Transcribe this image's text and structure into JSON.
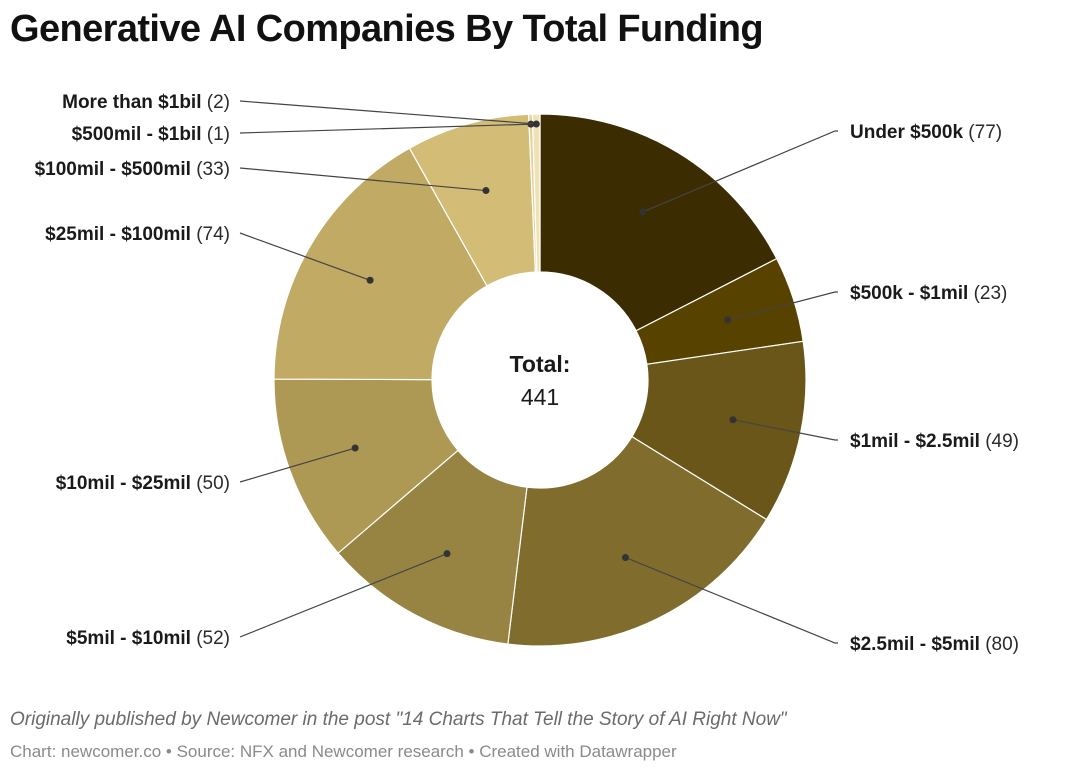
{
  "chart_data": {
    "type": "pie",
    "title": "Generative AI Companies By Total Funding",
    "center_label": "Total:",
    "center_value": "441",
    "slices": [
      {
        "label": "Under $500k",
        "count_text": "(77)",
        "value": 77,
        "color": "#3b2c02"
      },
      {
        "label": "$500k - $1mil",
        "count_text": "(23)",
        "value": 23,
        "color": "#574200"
      },
      {
        "label": "$1mil - $2.5mil",
        "count_text": "(49)",
        "value": 49,
        "color": "#6a5619"
      },
      {
        "label": "$2.5mil - $5mil",
        "count_text": "(80)",
        "value": 80,
        "color": "#806c2d"
      },
      {
        "label": "$5mil - $10mil",
        "count_text": "(52)",
        "value": 52,
        "color": "#988442"
      },
      {
        "label": "$10mil - $25mil",
        "count_text": "(50)",
        "value": 50,
        "color": "#ad9854"
      },
      {
        "label": "$25mil - $100mil",
        "count_text": "(74)",
        "value": 74,
        "color": "#c1aa64"
      },
      {
        "label": "$100mil - $500mil",
        "count_text": "(33)",
        "value": 33,
        "color": "#d3bd76"
      },
      {
        "label": "$500mil - $1bil",
        "count_text": "(1)",
        "value": 1,
        "color": "#e6d29a"
      },
      {
        "label": "More than $1bil",
        "count_text": "(2)",
        "value": 2,
        "color": "#f0e2b4"
      }
    ]
  },
  "footer": {
    "note": "Originally published by Newcomer in the post \"14 Charts That Tell the Story of AI Right Now\"",
    "credits": "Chart: newcomer.co • Source: NFX and Newcomer research • Created with Datawrapper"
  }
}
